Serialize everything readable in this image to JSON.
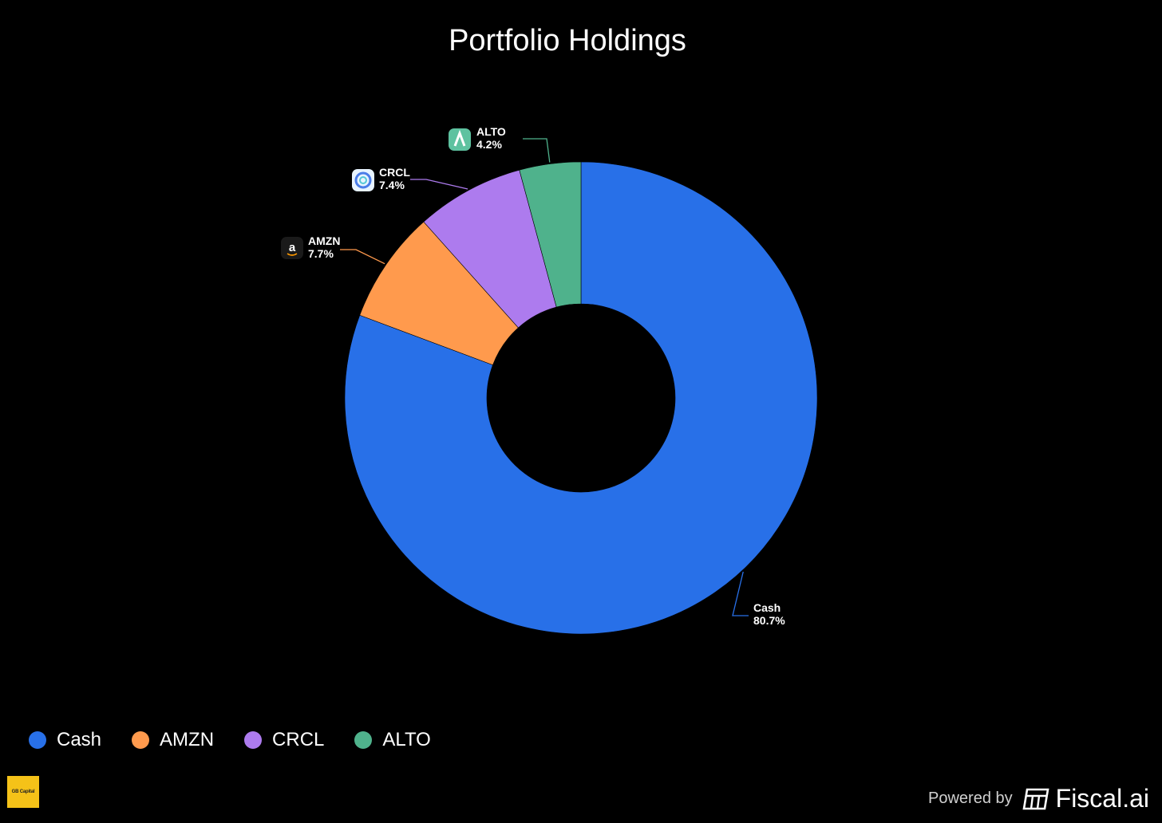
{
  "chart_data": {
    "type": "pie",
    "title": "Portfolio Holdings",
    "donut": true,
    "series": [
      {
        "name": "Cash",
        "value": 80.7,
        "label": "80.7%",
        "color": "#2870e8",
        "icon": "none"
      },
      {
        "name": "AMZN",
        "value": 7.7,
        "label": "7.7%",
        "color": "#ff9a4d",
        "icon": "amazon-logo-icon"
      },
      {
        "name": "CRCL",
        "value": 7.4,
        "label": "7.4%",
        "color": "#ad7bee",
        "icon": "circle-logo-icon"
      },
      {
        "name": "ALTO",
        "value": 4.2,
        "label": "4.2%",
        "color": "#4fb28c",
        "icon": "alto-logo-icon"
      }
    ],
    "legend_position": "bottom-left"
  },
  "colors": {
    "background": "#000000",
    "text": "#ffffff"
  },
  "branding": {
    "logo_text": "GB Capital",
    "powered_by": "Powered by",
    "provider": "Fiscal.ai"
  }
}
